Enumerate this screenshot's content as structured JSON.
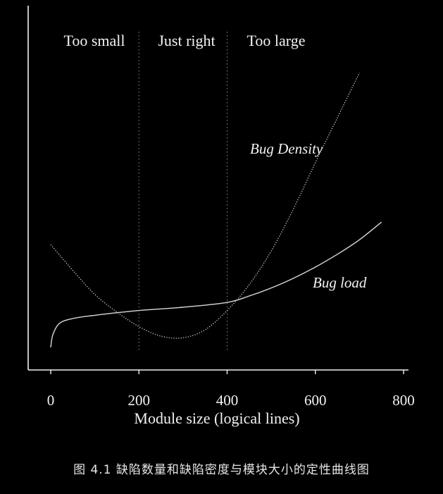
{
  "chart_data": {
    "type": "line",
    "title": "",
    "xlabel": "Module size (logical lines)",
    "ylabel": "",
    "xlim": [
      0,
      800
    ],
    "x_ticks": [
      "0",
      "200",
      "400",
      "600",
      "800"
    ],
    "grid": false,
    "regions": [
      {
        "label": "Too small",
        "from": 0,
        "to": 200
      },
      {
        "label": "Just right",
        "from": 200,
        "to": 400
      },
      {
        "label": "Too large",
        "from": 400,
        "to": 800
      }
    ],
    "region_boundaries": [
      200,
      400
    ],
    "series": [
      {
        "name": "Bug Density",
        "x": [
          0,
          50,
          100,
          150,
          200,
          250,
          300,
          350,
          400,
          450,
          500,
          550,
          600,
          650,
          700
        ],
        "y": [
          0.64,
          0.48,
          0.33,
          0.22,
          0.13,
          0.07,
          0.06,
          0.11,
          0.23,
          0.39,
          0.6,
          0.86,
          1.15,
          1.43,
          1.71
        ]
      },
      {
        "name": "Bug load",
        "x": [
          0,
          5,
          20,
          50,
          100,
          200,
          300,
          400,
          450,
          500,
          550,
          600,
          650,
          700,
          750
        ],
        "y": [
          0.0,
          0.08,
          0.15,
          0.18,
          0.2,
          0.23,
          0.25,
          0.28,
          0.32,
          0.37,
          0.43,
          0.5,
          0.58,
          0.67,
          0.78
        ]
      }
    ]
  },
  "caption": "图 4.1    缺陷数量和缺陷密度与模块大小的定性曲线图"
}
